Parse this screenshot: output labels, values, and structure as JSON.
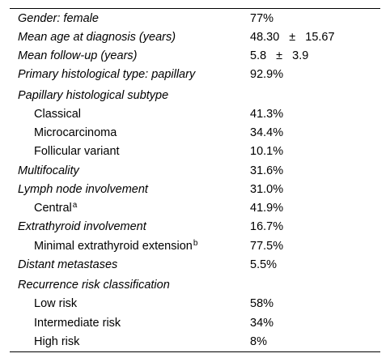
{
  "rows": [
    {
      "label": "Gender: female",
      "value": "77%"
    },
    {
      "label": "Mean age at diagnosis (years)",
      "mean": "48.30",
      "pm": "±",
      "sd": "15.67"
    },
    {
      "label": "Mean follow-up (years)",
      "mean": "5.8",
      "pm": "±",
      "sd": "3.9"
    },
    {
      "label": "Primary histological type: papillary",
      "value": "92.9%"
    },
    {
      "label": "Papillary histological subtype"
    },
    {
      "label": "Classical",
      "value": "41.3%"
    },
    {
      "label": "Microcarcinoma",
      "value": "34.4%"
    },
    {
      "label": "Follicular variant",
      "value": "10.1%"
    },
    {
      "label": "Multifocality",
      "value": "31.6%"
    },
    {
      "label": "Lymph node involvement",
      "value": "31.0%"
    },
    {
      "label": "Central",
      "sup": "a",
      "value": "41.9%"
    },
    {
      "label": "Extrathyroid involvement",
      "value": "16.7%"
    },
    {
      "label": "Minimal extrathyroid extension",
      "sup": "b",
      "value": "77.5%"
    },
    {
      "label": "Distant metastases",
      "value": "5.5%"
    },
    {
      "label": "Recurrence risk classification"
    },
    {
      "label": "Low risk",
      "value": "58%"
    },
    {
      "label": "Intermediate risk",
      "value": "34%"
    },
    {
      "label": "High risk",
      "value": "8%"
    }
  ]
}
